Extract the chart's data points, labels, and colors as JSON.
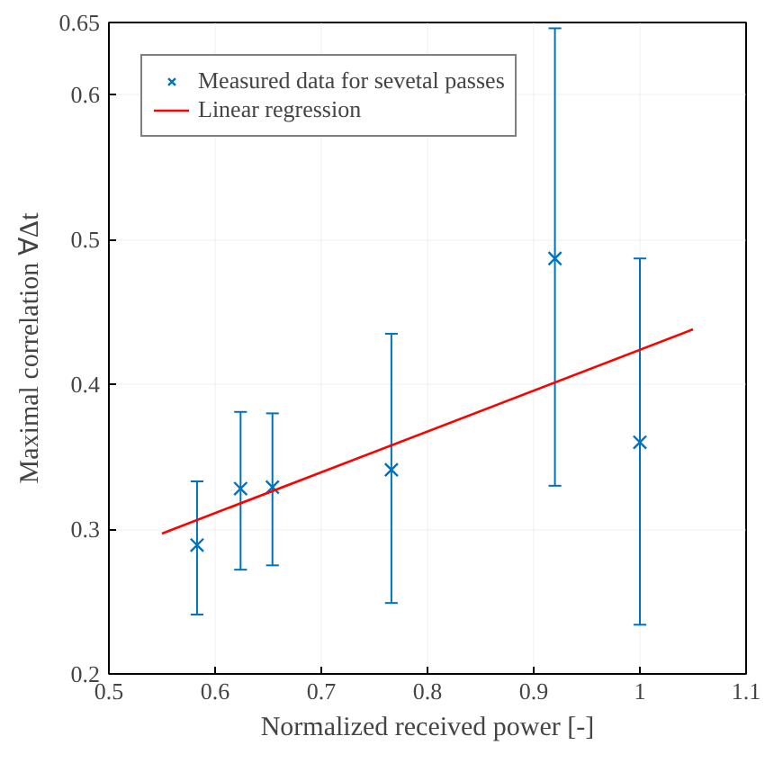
{
  "chart_data": {
    "type": "scatter",
    "xlabel": "Normalized received power [-]",
    "ylabel": "Maximal correlation ∀Δt",
    "xlim": [
      0.5,
      1.1
    ],
    "ylim": [
      0.2,
      0.65
    ],
    "xticks": [
      0.5,
      0.6,
      0.7,
      0.8,
      0.9,
      1,
      1.1
    ],
    "yticks": [
      0.2,
      0.3,
      0.4,
      0.5,
      0.6,
      0.65
    ],
    "grid": true,
    "legend": "top left",
    "series": [
      {
        "name": "Measured data for sevetal passes",
        "marker": "cross",
        "color": "#0072bd",
        "x": [
          0.583,
          0.624,
          0.654,
          0.766,
          0.92,
          1.0
        ],
        "values": [
          0.289,
          0.328,
          0.329,
          0.341,
          0.487,
          0.36
        ],
        "errors": [
          [
            0.241,
            0.333
          ],
          [
            0.272,
            0.381
          ],
          [
            0.275,
            0.38
          ],
          [
            0.249,
            0.435
          ],
          [
            0.33,
            0.646
          ],
          [
            0.234,
            0.487
          ]
        ]
      },
      {
        "name": "Linear regression",
        "type": "line",
        "color": "#ff0000",
        "x": [
          0.55,
          1.05
        ],
        "values": [
          0.297,
          0.438
        ]
      }
    ]
  }
}
